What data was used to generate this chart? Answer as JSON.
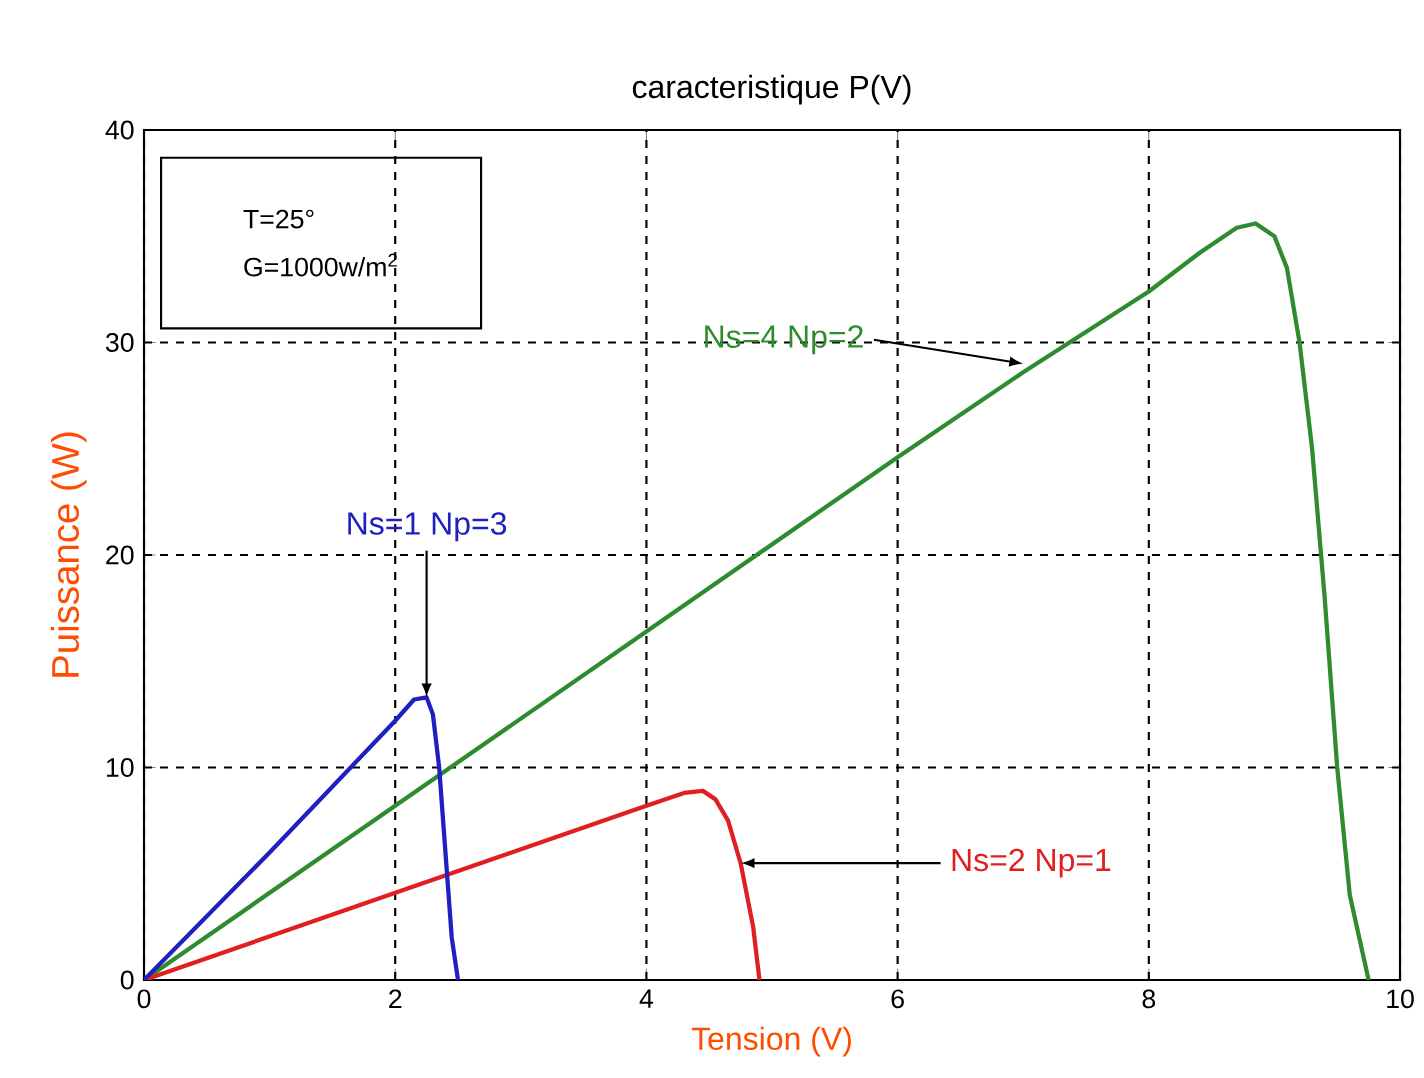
{
  "chart_data": {
    "type": "line",
    "title": "caracteristique P(V)",
    "xlabel": "Tension (V)",
    "ylabel": "Puissance (W)",
    "xlim": [
      0,
      10
    ],
    "ylim": [
      0,
      40
    ],
    "xticks": [
      0,
      2,
      4,
      6,
      8,
      10
    ],
    "yticks": [
      0,
      10,
      20,
      30,
      40
    ],
    "grid": true,
    "line_style": "solid",
    "marker": "none",
    "series": [
      {
        "color": "#2e8b2e",
        "x": [
          0,
          2,
          4,
          6,
          7,
          8,
          8.4,
          8.7,
          8.85,
          9.0,
          9.1,
          9.2,
          9.3,
          9.4,
          9.5,
          9.6,
          9.75
        ],
        "values": [
          0,
          8.2,
          16.4,
          24.6,
          28.6,
          32.4,
          34.2,
          35.4,
          35.6,
          35.0,
          33.5,
          30,
          25,
          18,
          10,
          4,
          0
        ]
      },
      {
        "color": "#e02020",
        "x": [
          0,
          2,
          4,
          4.3,
          4.45,
          4.55,
          4.65,
          4.75,
          4.85,
          4.9
        ],
        "values": [
          0,
          4.1,
          8.2,
          8.8,
          8.9,
          8.5,
          7.5,
          5.5,
          2.5,
          0
        ]
      },
      {
        "color": "#2020c0",
        "x": [
          0,
          1,
          2,
          2.15,
          2.25,
          2.3,
          2.35,
          2.4,
          2.45,
          2.5
        ],
        "values": [
          0,
          6,
          12.2,
          13.2,
          13.3,
          12.5,
          10,
          6,
          2,
          0
        ]
      }
    ],
    "annotations": [
      "T=25°",
      "G=1000w/m$^{2}$",
      {
        "text": "Ns=4  Np=2",
        "x": 7.0,
        "y": 29
      },
      {
        "text": "Ns=1  Np=3",
        "x": 2.25,
        "y": 13.3
      },
      {
        "text": "Ns=2  Np=1",
        "x": 4.75,
        "y": 5.5
      }
    ]
  }
}
